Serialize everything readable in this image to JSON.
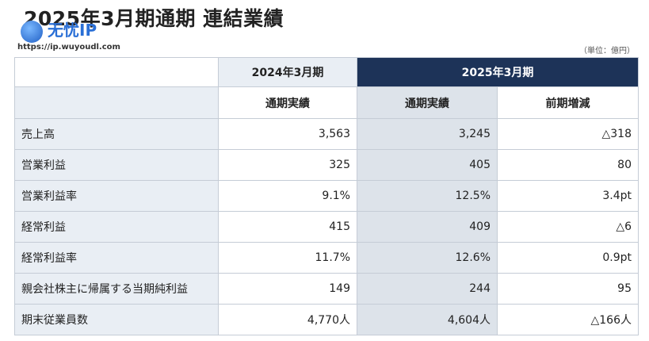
{
  "header": {
    "title": "2025年3月期通期 連結業績",
    "unit": "（単位：億円）"
  },
  "watermark": {
    "logo": "无忧IP",
    "url": "https://ip.wuyoudl.com"
  },
  "table": {
    "period_headers": [
      "2024年3月期",
      "2025年3月期"
    ],
    "sub_headers": [
      "通期実績",
      "通期実績",
      "前期増減"
    ],
    "rows": [
      [
        "売上高",
        "3,563",
        "3,245",
        "△318"
      ],
      [
        "営業利益",
        "325",
        "405",
        "80"
      ],
      [
        "営業利益率",
        "9.1%",
        "12.5%",
        "3.4pt"
      ],
      [
        "経常利益",
        "415",
        "409",
        "△6"
      ],
      [
        "経常利益率",
        "11.7%",
        "12.6%",
        "0.9pt"
      ],
      [
        "親会社株主に帰属する当期純利益",
        "149",
        "244",
        "95"
      ],
      [
        "期末従業員数",
        "4,770人",
        "4,604人",
        "△166人"
      ]
    ]
  }
}
